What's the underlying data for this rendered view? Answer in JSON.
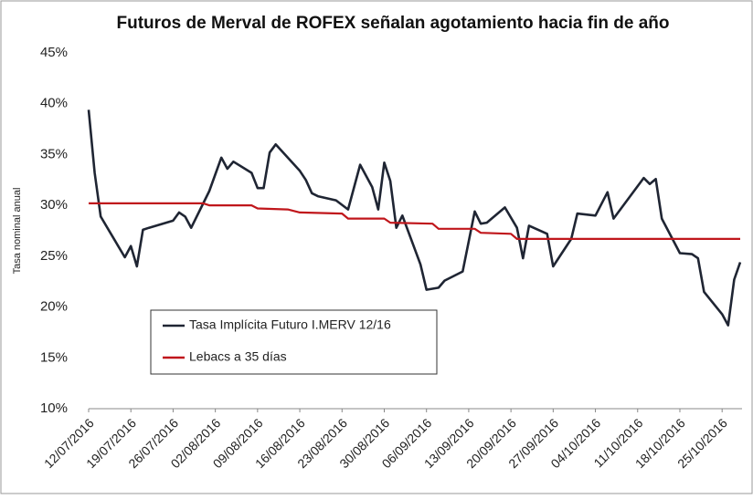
{
  "chart_data": {
    "type": "line",
    "title": "Futuros de Merval de ROFEX señalan agotamiento hacia fin de año",
    "ylabel": "Tasa nominal anual",
    "ylim": [
      10,
      45
    ],
    "yticks": [
      {
        "value": 10,
        "label": "10%"
      },
      {
        "value": 15,
        "label": "15%"
      },
      {
        "value": 20,
        "label": "20%"
      },
      {
        "value": 25,
        "label": "25%"
      },
      {
        "value": 30,
        "label": "30%"
      },
      {
        "value": 35,
        "label": "35%"
      },
      {
        "value": 40,
        "label": "40%"
      },
      {
        "value": 45,
        "label": "45%"
      }
    ],
    "xlim": [
      "12/07/2016",
      "28/10/2016"
    ],
    "xticks": [
      "12/07/2016",
      "19/07/2016",
      "26/07/2016",
      "02/08/2016",
      "09/08/2016",
      "16/08/2016",
      "23/08/2016",
      "30/08/2016",
      "06/09/2016",
      "13/09/2016",
      "20/09/2016",
      "27/09/2016",
      "04/10/2016",
      "11/10/2016",
      "18/10/2016",
      "25/10/2016"
    ],
    "grid": false,
    "series": [
      {
        "name": "Tasa Implícita Futuro I.MERV 12/16",
        "color": "#1f2533",
        "x": [
          "12/07/2016",
          "13/07/2016",
          "14/07/2016",
          "18/07/2016",
          "19/07/2016",
          "20/07/2016",
          "21/07/2016",
          "22/07/2016",
          "26/07/2016",
          "27/07/2016",
          "28/07/2016",
          "29/07/2016",
          "01/08/2016",
          "03/08/2016",
          "04/08/2016",
          "05/08/2016",
          "08/08/2016",
          "09/08/2016",
          "10/08/2016",
          "11/08/2016",
          "12/08/2016",
          "16/08/2016",
          "17/08/2016",
          "18/08/2016",
          "19/08/2016",
          "22/08/2016",
          "24/08/2016",
          "25/08/2016",
          "26/08/2016",
          "28/08/2016",
          "29/08/2016",
          "30/08/2016",
          "31/08/2016",
          "01/09/2016",
          "02/09/2016",
          "05/09/2016",
          "06/09/2016",
          "08/09/2016",
          "09/09/2016",
          "12/09/2016",
          "14/09/2016",
          "15/09/2016",
          "16/09/2016",
          "19/09/2016",
          "21/09/2016",
          "22/09/2016",
          "23/09/2016",
          "26/09/2016",
          "27/09/2016",
          "30/09/2016",
          "01/10/2016",
          "04/10/2016",
          "06/10/2016",
          "07/10/2016",
          "12/10/2016",
          "13/10/2016",
          "14/10/2016",
          "15/10/2016",
          "18/10/2016",
          "20/10/2016",
          "21/10/2016",
          "22/10/2016",
          "25/10/2016",
          "26/10/2016",
          "27/10/2016",
          "28/10/2016"
        ],
        "values": [
          39.4,
          33.2,
          28.9,
          24.9,
          26,
          24.0,
          27.6,
          27.8,
          28.5,
          29.3,
          28.9,
          27.8,
          31.4,
          34.7,
          33.6,
          34.3,
          33.2,
          31.7,
          31.7,
          35.2,
          36.0,
          33.4,
          32.5,
          31.2,
          30.9,
          30.5,
          29.6,
          31.8,
          34.0,
          31.8,
          29.6,
          34.2,
          32.4,
          27.8,
          29.0,
          24.2,
          21.7,
          21.9,
          22.6,
          23.5,
          29.4,
          28.2,
          28.3,
          29.8,
          27.8,
          24.8,
          28.0,
          27.2,
          24.0,
          26.7,
          29.2,
          29.0,
          31.3,
          28.7,
          32.7,
          32.1,
          32.6,
          28.7,
          25.3,
          25.2,
          24.8,
          21.5,
          19.3,
          18.2,
          22.7,
          24.4
        ]
      },
      {
        "name": "Lebacs a 35 días",
        "color": "#c0161b",
        "x": [
          "12/07/2016",
          "31/07/2016",
          "01/08/2016",
          "08/08/2016",
          "09/08/2016",
          "14/08/2016",
          "16/08/2016",
          "23/08/2016",
          "24/08/2016",
          "30/08/2016",
          "31/08/2016",
          "07/09/2016",
          "08/09/2016",
          "14/09/2016",
          "15/09/2016",
          "20/09/2016",
          "21/09/2016",
          "28/10/2016"
        ],
        "values": [
          30.2,
          30.2,
          30.0,
          30.0,
          29.7,
          29.6,
          29.3,
          29.2,
          28.7,
          28.7,
          28.3,
          28.2,
          27.7,
          27.7,
          27.3,
          27.2,
          26.7,
          26.7
        ]
      }
    ]
  }
}
